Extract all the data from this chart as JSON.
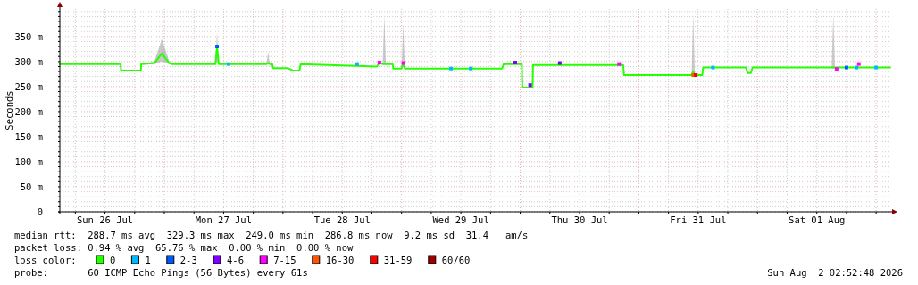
{
  "chart_data": {
    "type": "line",
    "ylabel": "Seconds",
    "legend_title": "loss color:",
    "legend": "bottom",
    "grid": true,
    "xlim": [
      "2026-07-26T02:52",
      "2026-08-02T02:52"
    ],
    "xticks": [
      {
        "value": "2026-07-26T06:00",
        "label": null
      },
      {
        "value": "2026-07-26T12:00",
        "label": "Sun 26 Jul"
      },
      {
        "value": "2026-07-26T18:00",
        "label": null
      },
      {
        "value": "2026-07-27T00:00",
        "label": null
      },
      {
        "value": "2026-07-27T06:00",
        "label": null
      },
      {
        "value": "2026-07-27T12:00",
        "label": "Mon 27 Jul"
      },
      {
        "value": "2026-07-27T18:00",
        "label": null
      },
      {
        "value": "2026-07-28T00:00",
        "label": null
      },
      {
        "value": "2026-07-28T06:00",
        "label": null
      },
      {
        "value": "2026-07-28T12:00",
        "label": "Tue 28 Jul"
      },
      {
        "value": "2026-07-28T18:00",
        "label": null
      },
      {
        "value": "2026-07-29T00:00",
        "label": null
      },
      {
        "value": "2026-07-29T06:00",
        "label": null
      },
      {
        "value": "2026-07-29T12:00",
        "label": "Wed 29 Jul"
      },
      {
        "value": "2026-07-29T18:00",
        "label": null
      },
      {
        "value": "2026-07-30T00:00",
        "label": null
      },
      {
        "value": "2026-07-30T06:00",
        "label": null
      },
      {
        "value": "2026-07-30T12:00",
        "label": "Thu 30 Jul"
      },
      {
        "value": "2026-07-30T18:00",
        "label": null
      },
      {
        "value": "2026-07-31T00:00",
        "label": null
      },
      {
        "value": "2026-07-31T06:00",
        "label": null
      },
      {
        "value": "2026-07-31T12:00",
        "label": "Fri 31 Jul"
      },
      {
        "value": "2026-07-31T18:00",
        "label": null
      },
      {
        "value": "2026-08-01T00:00",
        "label": null
      },
      {
        "value": "2026-08-01T06:00",
        "label": null
      },
      {
        "value": "2026-08-01T12:00",
        "label": "Sat 01 Aug"
      },
      {
        "value": "2026-08-01T18:00",
        "label": null
      },
      {
        "value": "2026-08-02T00:00",
        "label": null
      }
    ],
    "ylim": [
      0,
      405
    ],
    "yticks": [
      {
        "value": 0,
        "label": "0"
      },
      {
        "value": 10,
        "label": null
      },
      {
        "value": 20,
        "label": null
      },
      {
        "value": 30,
        "label": null
      },
      {
        "value": 40,
        "label": null
      },
      {
        "value": 50,
        "label": "50 m"
      },
      {
        "value": 60,
        "label": null
      },
      {
        "value": 70,
        "label": null
      },
      {
        "value": 80,
        "label": null
      },
      {
        "value": 90,
        "label": null
      },
      {
        "value": 100,
        "label": "100 m"
      },
      {
        "value": 110,
        "label": null
      },
      {
        "value": 120,
        "label": null
      },
      {
        "value": 130,
        "label": null
      },
      {
        "value": 140,
        "label": null
      },
      {
        "value": 150,
        "label": "150 m"
      },
      {
        "value": 160,
        "label": null
      },
      {
        "value": 170,
        "label": null
      },
      {
        "value": 180,
        "label": null
      },
      {
        "value": 190,
        "label": null
      },
      {
        "value": 200,
        "label": "200 m"
      },
      {
        "value": 210,
        "label": null
      },
      {
        "value": 220,
        "label": null
      },
      {
        "value": 230,
        "label": null
      },
      {
        "value": 240,
        "label": null
      },
      {
        "value": 250,
        "label": "250 m"
      },
      {
        "value": 260,
        "label": null
      },
      {
        "value": 270,
        "label": null
      },
      {
        "value": 280,
        "label": null
      },
      {
        "value": 290,
        "label": null
      },
      {
        "value": 300,
        "label": "300 m"
      },
      {
        "value": 310,
        "label": null
      },
      {
        "value": 320,
        "label": null
      },
      {
        "value": 330,
        "label": null
      },
      {
        "value": 340,
        "label": null
      },
      {
        "value": 350,
        "label": "350 m"
      },
      {
        "value": 360,
        "label": null
      },
      {
        "value": 370,
        "label": null
      },
      {
        "value": 380,
        "label": null
      },
      {
        "value": 390,
        "label": null
      },
      {
        "value": 400,
        "label": null
      }
    ],
    "series": [
      {
        "name": "0",
        "color": "#26ff00",
        "x": [
          "2026-07-26T02:52",
          "2026-07-26T15:10",
          "2026-07-26T15:15",
          "2026-07-26T19:15",
          "2026-07-26T19:20",
          "2026-07-26T22:00",
          "2026-07-26T23:30",
          "2026-07-27T01:00",
          "2026-07-27T01:30",
          "2026-07-27T10:20",
          "2026-07-27T10:40",
          "2026-07-27T11:00",
          "2026-07-27T20:40",
          "2026-07-27T21:00",
          "2026-07-27T21:20",
          "2026-07-27T21:50",
          "2026-07-27T22:00",
          "2026-07-28T01:00",
          "2026-07-28T02:00",
          "2026-07-28T03:20",
          "2026-07-28T03:35",
          "2026-07-28T19:00",
          "2026-07-28T19:30",
          "2026-07-28T20:10",
          "2026-07-28T20:30",
          "2026-07-28T20:50",
          "2026-07-28T22:10",
          "2026-07-28T22:20",
          "2026-07-29T00:00",
          "2026-07-29T00:20",
          "2026-07-29T00:40",
          "2026-07-29T01:00",
          "2026-07-29T20:20",
          "2026-07-29T20:40",
          "2026-07-30T00:20",
          "2026-07-30T00:25",
          "2026-07-30T02:30",
          "2026-07-30T02:35",
          "2026-07-30T20:50",
          "2026-07-30T21:00",
          "2026-07-31T10:40",
          "2026-07-31T11:00",
          "2026-07-31T11:20",
          "2026-07-31T12:50",
          "2026-07-31T13:00",
          "2026-07-31T21:40",
          "2026-07-31T22:00",
          "2026-07-31T22:40",
          "2026-07-31T23:00",
          "2026-08-01T15:00",
          "2026-08-01T15:20",
          "2026-08-01T15:40",
          "2026-08-02T02:52"
        ],
        "values": [
          295,
          295,
          282,
          282,
          295,
          297,
          316,
          297,
          295,
          295,
          330,
          295,
          295,
          297,
          295,
          295,
          287,
          287,
          282,
          282,
          295,
          290,
          297,
          295,
          295,
          295,
          295,
          286,
          286,
          297,
          286,
          286,
          286,
          295,
          295,
          248,
          248,
          293,
          293,
          273,
          273,
          280,
          273,
          273,
          288,
          288,
          277,
          277,
          288,
          288,
          288,
          288,
          288
        ],
        "lower": [
          295,
          295,
          282,
          282,
          295,
          295,
          300,
          295,
          295,
          295,
          300,
          295,
          295,
          295,
          295,
          295,
          287,
          287,
          282,
          282,
          295,
          290,
          295,
          295,
          295,
          295,
          295,
          286,
          286,
          290,
          286,
          286,
          286,
          295,
          295,
          248,
          248,
          293,
          293,
          273,
          273,
          273,
          273,
          273,
          288,
          288,
          277,
          277,
          288,
          288,
          285,
          288,
          288
        ],
        "upper": [
          295,
          295,
          282,
          282,
          295,
          300,
          345,
          300,
          295,
          295,
          360,
          295,
          295,
          320,
          295,
          295,
          287,
          287,
          282,
          282,
          295,
          290,
          300,
          295,
          390,
          295,
          295,
          286,
          286,
          375,
          286,
          286,
          286,
          295,
          295,
          248,
          248,
          293,
          293,
          273,
          273,
          395,
          273,
          273,
          288,
          288,
          277,
          277,
          288,
          288,
          395,
          288,
          288
        ]
      },
      {
        "name": "1",
        "type": "scatter",
        "marker": "square",
        "color": "#00b8ff",
        "x": [
          "2026-07-27T13:00",
          "2026-07-28T15:00",
          "2026-07-29T10:00",
          "2026-07-29T14:00",
          "2026-07-31T15:00",
          "2026-08-01T20:00",
          "2026-08-02T00:00"
        ],
        "values": [
          295,
          295,
          286,
          286,
          288,
          288,
          288
        ]
      },
      {
        "name": "2-3",
        "type": "scatter",
        "marker": "square",
        "color": "#0059ff",
        "x": [
          "2026-07-27T10:40",
          "2026-08-01T18:00"
        ],
        "values": [
          330,
          288
        ]
      },
      {
        "name": "4-6",
        "type": "scatter",
        "marker": "square",
        "color": "#7e00ff",
        "x": [
          "2026-07-29T23:00",
          "2026-07-30T02:00",
          "2026-07-30T08:00"
        ],
        "values": [
          298,
          253,
          297
        ]
      },
      {
        "name": "7-15",
        "type": "scatter",
        "marker": "square",
        "color": "#ff00ff",
        "x": [
          "2026-07-28T19:30",
          "2026-07-29T00:20",
          "2026-07-30T20:00",
          "2026-08-01T16:00",
          "2026-08-01T20:30"
        ],
        "values": [
          298,
          297,
          295,
          285,
          295
        ]
      },
      {
        "name": "16-30",
        "type": "scatter",
        "marker": "square",
        "color": "#ff5500",
        "x": [
          "2026-07-31T11:00"
        ],
        "values": [
          273
        ]
      },
      {
        "name": "31-59",
        "type": "scatter",
        "marker": "square",
        "color": "#ff0000",
        "x": [
          "2026-07-31T11:30"
        ],
        "values": [
          273
        ]
      },
      {
        "name": "60/60",
        "type": "scatter",
        "marker": "square",
        "color": "#a10000"
      }
    ],
    "annotations": [
      "median rtt:  288.7 ms avg  329.3 ms max  249.0 ms min  286.8 ms now  9.2 ms sd  31.4   am/s",
      "packet loss: 0.94 % avg  65.76 % max  0.00 % min  0.00 % now",
      "probe:       60 ICMP Echo Pings (56 Bytes) every 61s",
      "Sun Aug  2 02:52:48 2026"
    ]
  }
}
